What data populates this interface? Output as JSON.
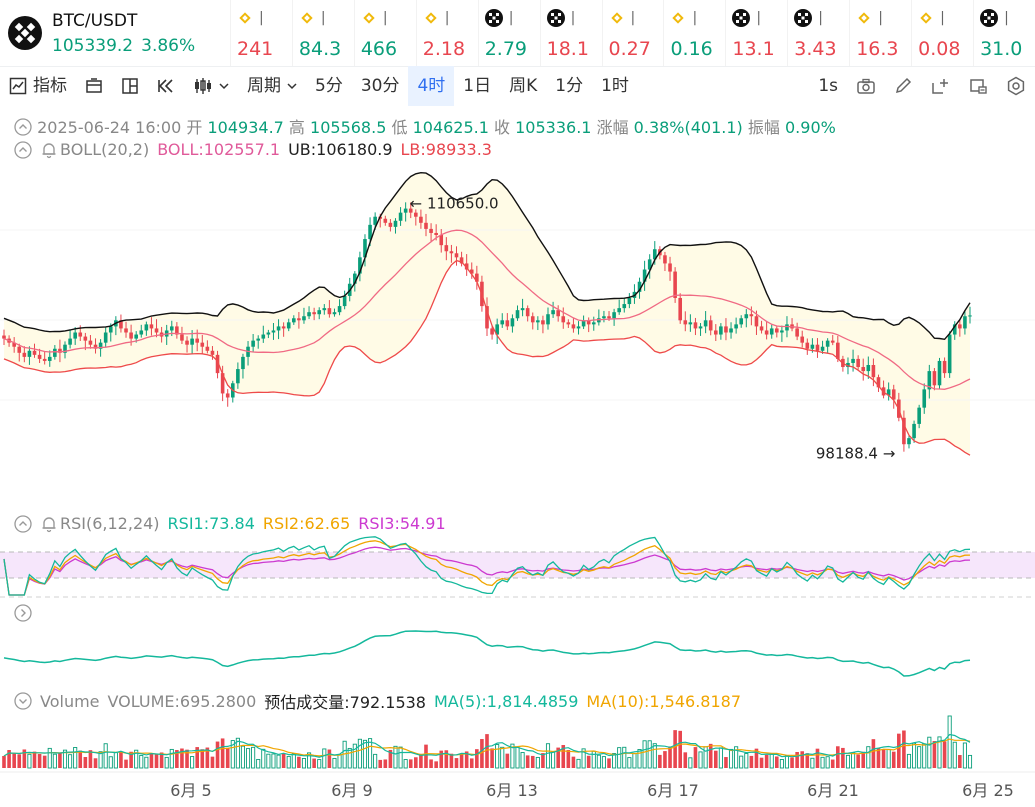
{
  "pair": {
    "symbol": "BTC/USDT",
    "price": "105339.2",
    "change": "3.86%",
    "icon": "btc-swap-icon"
  },
  "tickers": [
    {
      "value": "241",
      "dir": "down",
      "icon": "bnb-icon"
    },
    {
      "value": "84.3",
      "dir": "up",
      "icon": "bnb-icon"
    },
    {
      "value": "466",
      "dir": "up",
      "icon": "bnb-icon"
    },
    {
      "value": "2.18",
      "dir": "down",
      "icon": "bnb-icon"
    },
    {
      "value": "2.79",
      "dir": "up",
      "icon": "checker-icon"
    },
    {
      "value": "18.1",
      "dir": "down",
      "icon": "checker-icon"
    },
    {
      "value": "0.27",
      "dir": "down",
      "icon": "bnb-icon"
    },
    {
      "value": "0.16",
      "dir": "up",
      "icon": "bnb-icon"
    },
    {
      "value": "13.1",
      "dir": "down",
      "icon": "checker-icon"
    },
    {
      "value": "3.43",
      "dir": "down",
      "icon": "checker-icon"
    },
    {
      "value": "16.3",
      "dir": "down",
      "icon": "bnb-icon"
    },
    {
      "value": "0.08",
      "dir": "down",
      "icon": "bnb-icon"
    },
    {
      "value": "31.0",
      "dir": "up",
      "icon": "checker-icon"
    }
  ],
  "toolbar": {
    "indicators": "指标",
    "period": "周期",
    "intervals": [
      "5分",
      "30分",
      "4时",
      "1日",
      "周K",
      "1分",
      "1时"
    ],
    "active_interval": "4时",
    "refresh": "1s"
  },
  "ohlc": {
    "datetime": "2025-06-24 16:00",
    "open_label": "开",
    "open": "104934.7",
    "high_label": "高",
    "high": "105568.5",
    "low_label": "低",
    "low": "104625.1",
    "close_label": "收",
    "close": "105336.1",
    "change_label": "涨幅",
    "change": "0.38%(401.1)",
    "amp_label": "振幅",
    "amp": "0.90%"
  },
  "boll": {
    "label": "BOLL(20,2)",
    "mid": "BOLL:102557.1",
    "ub": "UB:106180.9",
    "lb": "LB:98933.3"
  },
  "rsi": {
    "label": "RSI(6,12,24)",
    "rsi1": "RSI1:73.84",
    "rsi2": "RSI2:62.65",
    "rsi3": "RSI3:54.91"
  },
  "volume": {
    "label": "Volume",
    "value": "VOLUME:695.2800",
    "estimate": "预估成交量:792.1538",
    "ma5": "MA(5):1,814.4859",
    "ma10": "MA(10):1,546.8187"
  },
  "colors": {
    "up": "#0a9e7a",
    "down": "#e8464f",
    "upper_band": "#111111",
    "mid_band": "#f06a84",
    "lower_band": "#ee4a4a",
    "band_fill": "#fffbe6"
  },
  "chart_data": {
    "type": "candlestick",
    "interval": "4h",
    "x_tick_labels": [
      "6月 5",
      "6月 9",
      "6月 13",
      "6月 17",
      "6月 21",
      "6月 25"
    ],
    "y_range": [
      96500,
      112500
    ],
    "annotations": [
      {
        "label": "110650.0",
        "type": "high"
      },
      {
        "label": "98188.4",
        "type": "low"
      }
    ],
    "close_series": [
      104200,
      104000,
      103800,
      103500,
      103300,
      103600,
      103400,
      103200,
      103100,
      103300,
      103700,
      103500,
      103900,
      104200,
      104500,
      104300,
      104100,
      103900,
      103700,
      104000,
      104500,
      104800,
      105100,
      104700,
      104500,
      104200,
      104400,
      104600,
      104900,
      104700,
      104500,
      104300,
      104600,
      104800,
      104400,
      104100,
      103900,
      104200,
      104000,
      103800,
      103600,
      103400,
      102500,
      101500,
      101300,
      102000,
      102700,
      103300,
      103800,
      104100,
      104200,
      104400,
      104500,
      104600,
      104800,
      104700,
      105000,
      105200,
      105100,
      105300,
      105500,
      105400,
      105600,
      105700,
      105400,
      105500,
      105800,
      106300,
      106900,
      107400,
      108200,
      109100,
      109800,
      110200,
      110100,
      109900,
      109700,
      110000,
      110400,
      110600,
      110400,
      110200,
      109900,
      109600,
      109400,
      109300,
      108800,
      108500,
      108400,
      108200,
      107900,
      107600,
      107400,
      107000,
      105800,
      104700,
      104400,
      104900,
      105100,
      104800,
      105200,
      105600,
      105700,
      105300,
      105000,
      105100,
      104900,
      105400,
      105600,
      105300,
      105000,
      104900,
      104700,
      104800,
      105100,
      104900,
      105000,
      105200,
      105300,
      105200,
      105500,
      105700,
      105900,
      106200,
      106500,
      107000,
      107600,
      108100,
      108600,
      108300,
      107900,
      107500,
      106200,
      105100,
      104900,
      105000,
      104700,
      104800,
      105100,
      104600,
      104400,
      104800,
      104500,
      104700,
      104900,
      105200,
      105400,
      105300,
      104800,
      104600,
      104400,
      104700,
      104500,
      104600,
      104900,
      104700,
      104300,
      104000,
      103700,
      103900,
      103600,
      103800,
      104100,
      104000,
      103200,
      102800,
      103000,
      103200,
      102800,
      102600,
      102900,
      102300,
      101800,
      101400,
      101700,
      101200,
      100300,
      99000,
      99300,
      100000,
      100800,
      101700,
      102600,
      101900,
      103100,
      102500,
      104400,
      104900,
      104700,
      105300,
      105339
    ]
  }
}
